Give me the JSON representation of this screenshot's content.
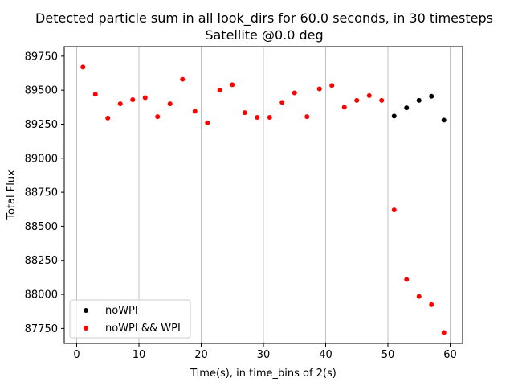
{
  "chart_data": {
    "type": "scatter",
    "title_line1": "Detected particle sum in all look_dirs for 60.0 seconds, in 30 timesteps",
    "title_line2": "Satellite @0.0 deg",
    "xlabel": "Time(s), in time_bins of 2(s)",
    "ylabel": "Total Flux",
    "xlim": [
      -2,
      62
    ],
    "ylim": [
      87640,
      89820
    ],
    "x_ticks": [
      0,
      10,
      20,
      30,
      40,
      50,
      60
    ],
    "y_ticks": [
      87750,
      88000,
      88250,
      88500,
      88750,
      89000,
      89250,
      89500,
      89750
    ],
    "grid": "vertical",
    "legend_position": "lower-left",
    "series": [
      {
        "name": "noWPI",
        "color": "#000000",
        "x": [
          51,
          53,
          55,
          57,
          59
        ],
        "y": [
          89310,
          89370,
          89425,
          89455,
          89280
        ]
      },
      {
        "name": "noWPI && WPI",
        "color": "#ff0000",
        "x": [
          1,
          3,
          5,
          7,
          9,
          11,
          13,
          15,
          17,
          19,
          21,
          23,
          25,
          27,
          29,
          31,
          33,
          35,
          37,
          39,
          41,
          43,
          45,
          47,
          49,
          51,
          53,
          55,
          57,
          59
        ],
        "y": [
          89670,
          89470,
          89295,
          89400,
          89430,
          89445,
          89305,
          89400,
          89580,
          89345,
          89260,
          89500,
          89540,
          89335,
          89300,
          89300,
          89410,
          89480,
          89305,
          89510,
          89535,
          89375,
          89425,
          89460,
          89425,
          88620,
          88110,
          87985,
          87925,
          87720
        ]
      }
    ]
  }
}
